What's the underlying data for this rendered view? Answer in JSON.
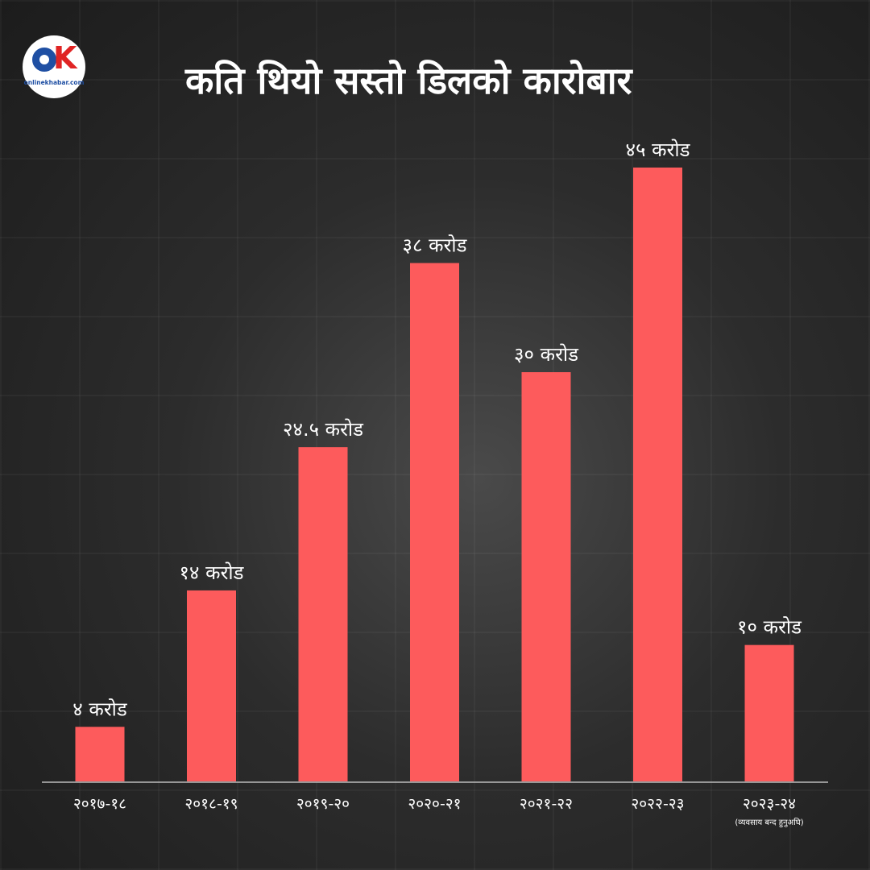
{
  "header": {
    "title": "कति थियो सस्तो डिलको कारोबार",
    "logo_brand": "onlinekhabar.com"
  },
  "colors": {
    "bar": "#fd5b5c",
    "background": "#2a2a2a",
    "text": "#ffffff",
    "axis": "#bbbbbb"
  },
  "chart_data": {
    "type": "bar",
    "title": "कति थियो सस्तो डिलको कारोबार",
    "categories": [
      "२०१७-१८",
      "२०१८-१९",
      "२०१९-२०",
      "२०२०-२१",
      "२०२१-२२",
      "२०२२-२३",
      "२०२३-२४"
    ],
    "values": [
      4,
      14,
      24.5,
      38,
      30,
      45,
      10
    ],
    "value_labels": [
      "४ करोड",
      "१४ करोड",
      "२४.५ करोड",
      "३८ करोड",
      "३० करोड",
      "४५ करोड",
      "१० करोड"
    ],
    "category_notes": [
      "",
      "",
      "",
      "",
      "",
      "",
      "(व्यवसाय बन्द हुनुअघि)"
    ],
    "xlabel": "",
    "ylabel": "",
    "ylim": [
      0,
      45
    ],
    "grid": false,
    "legend": "none"
  }
}
